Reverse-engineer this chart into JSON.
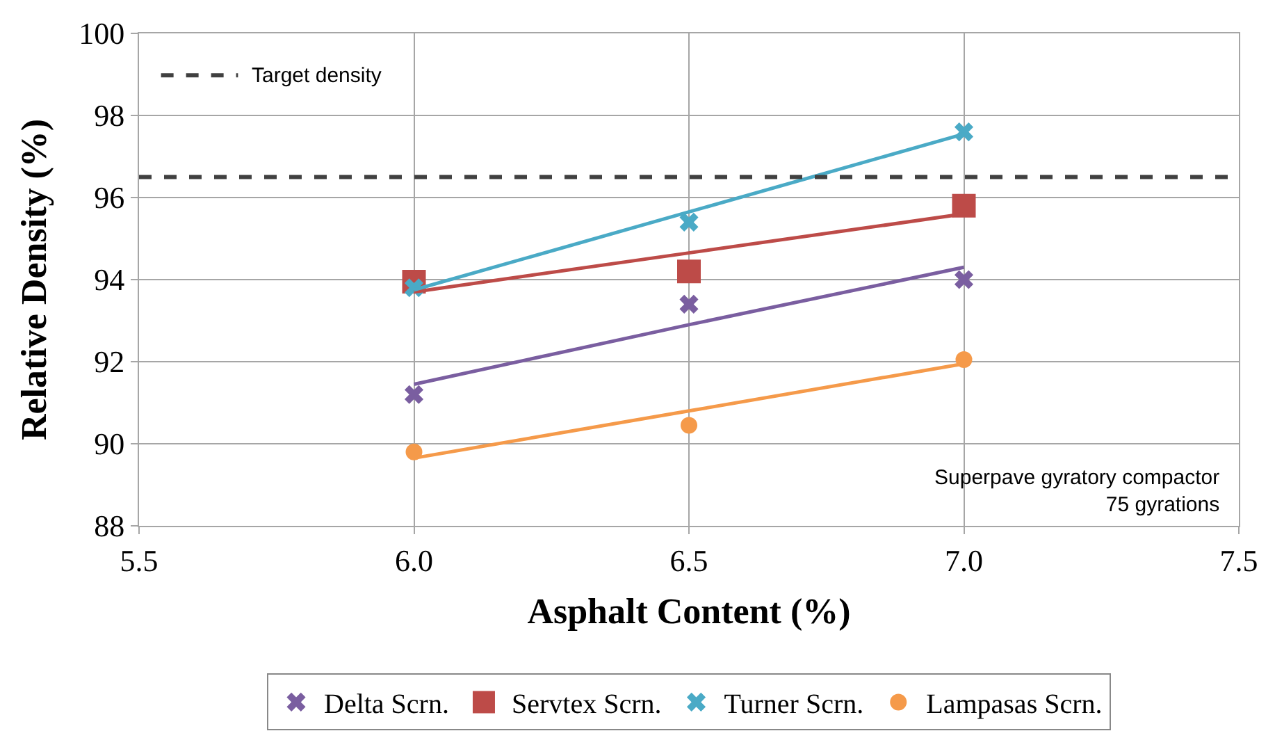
{
  "chart_data": {
    "type": "scatter",
    "xlabel": "Asphalt Content (%)",
    "ylabel": "Relative Density (%)",
    "x": [
      6.0,
      6.5,
      7.0
    ],
    "series": [
      {
        "name": "Delta Scrn.",
        "color": "#7a5ea0",
        "marker": "cross",
        "values": [
          91.2,
          93.4,
          94.0
        ]
      },
      {
        "name": "Servtex Scrn.",
        "color": "#bd4b48",
        "marker": "square",
        "values": [
          93.95,
          94.2,
          95.8
        ]
      },
      {
        "name": "Turner Scrn.",
        "color": "#4aaac6",
        "marker": "cross",
        "values": [
          93.8,
          95.4,
          97.6
        ]
      },
      {
        "name": "Lampasas Scrn.",
        "color": "#f59a4a",
        "marker": "circle",
        "values": [
          89.8,
          90.45,
          92.05
        ]
      },
      {
        "type": "line",
        "color": "#7a5ea0",
        "values": [
          91.45,
          92.9,
          94.3
        ]
      },
      {
        "type": "line",
        "color": "#bd4b48",
        "values": [
          93.7,
          94.65,
          95.6
        ]
      },
      {
        "type": "line",
        "color": "#4aaac6",
        "values": [
          93.75,
          95.65,
          97.55
        ]
      },
      {
        "type": "line",
        "color": "#f59a4a",
        "values": [
          89.65,
          90.8,
          91.95
        ]
      }
    ],
    "ref_lines": [
      {
        "axis": "y",
        "value": 96.5,
        "label": "Target density",
        "color": "#404040",
        "line_style": "dashed"
      }
    ],
    "annotations": [
      "Superpave gyratory compactor\n75 gyrations"
    ],
    "xlim": [
      5.5,
      7.5
    ],
    "xticks": [
      {
        "value": 5.5,
        "label": "5.5"
      },
      {
        "value": 6.0,
        "label": "6.0"
      },
      {
        "value": 6.5,
        "label": "6.5"
      },
      {
        "value": 7.0,
        "label": "7.0"
      },
      {
        "value": 7.5,
        "label": "7.5"
      }
    ],
    "ylim": [
      88,
      100
    ],
    "yticks": [
      88,
      90,
      92,
      94,
      96,
      98,
      100
    ],
    "grid": true,
    "legend": "bottom"
  }
}
